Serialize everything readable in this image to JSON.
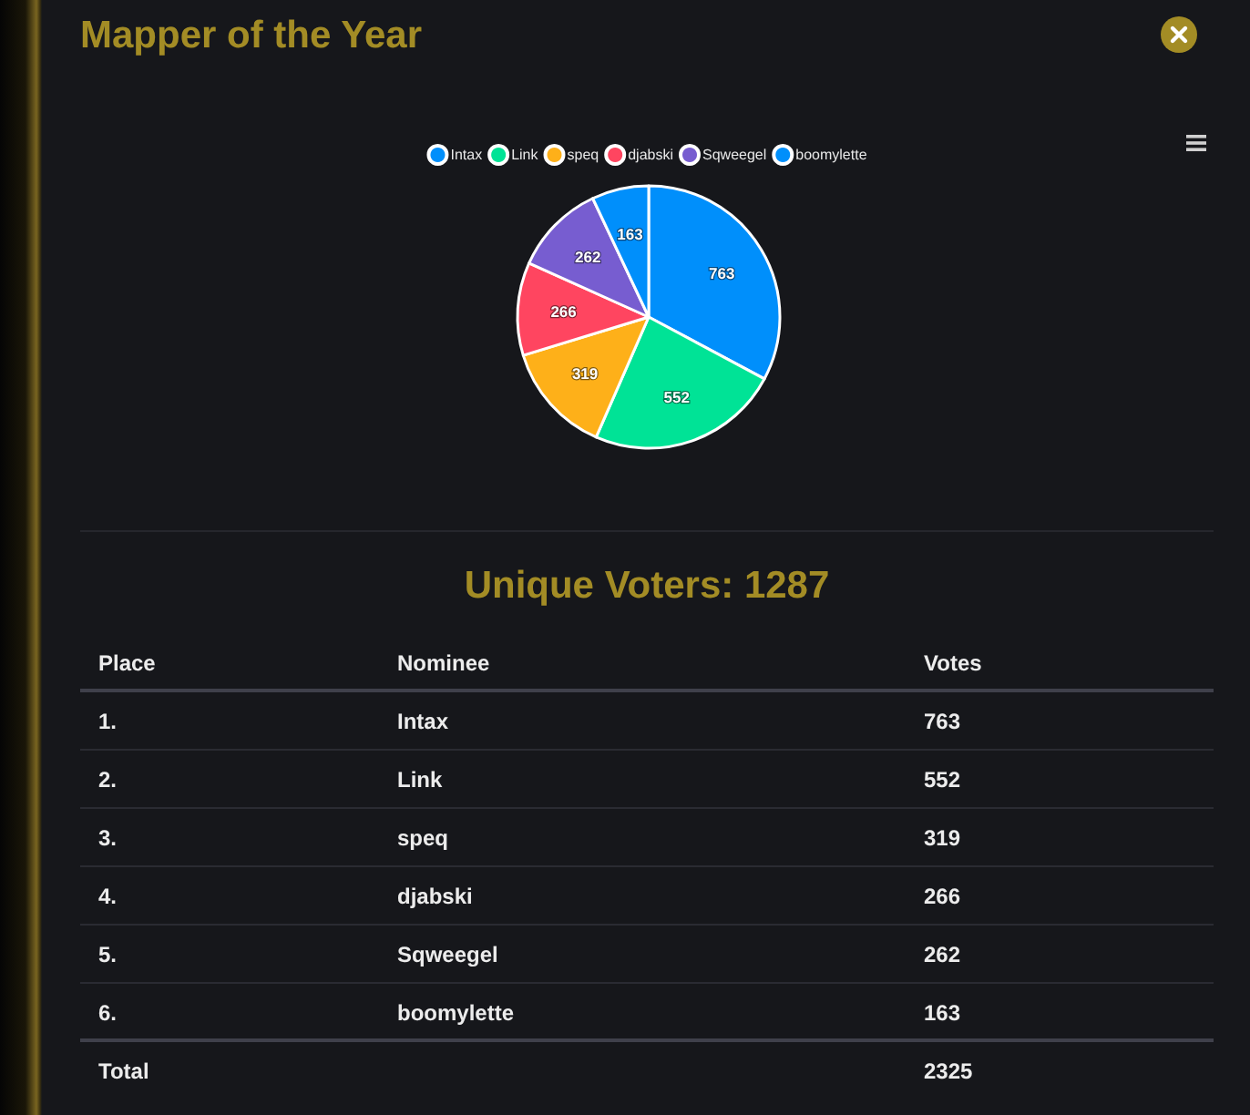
{
  "chart_data": {
    "type": "pie",
    "title": "Mapper of the Year",
    "subtitle": "Unique Voters: 1287",
    "categories": [
      "Intax",
      "Link",
      "speq",
      "djabski",
      "Sqweegel",
      "boomylette"
    ],
    "values": [
      763,
      552,
      319,
      266,
      262,
      163
    ],
    "colors": [
      "#008ffb",
      "#00e396",
      "#feb019",
      "#ff4560",
      "#775dd0",
      "#008ffb"
    ],
    "data_labels": true,
    "legend": "top",
    "annotations": [
      "Place",
      "Nominee",
      "Votes",
      "1.",
      "2.",
      "3.",
      "4.",
      "5.",
      "6.",
      "763",
      "552",
      "319",
      "266",
      "262",
      "163",
      "Total"
    ],
    "totals": [
      "2325"
    ]
  }
}
